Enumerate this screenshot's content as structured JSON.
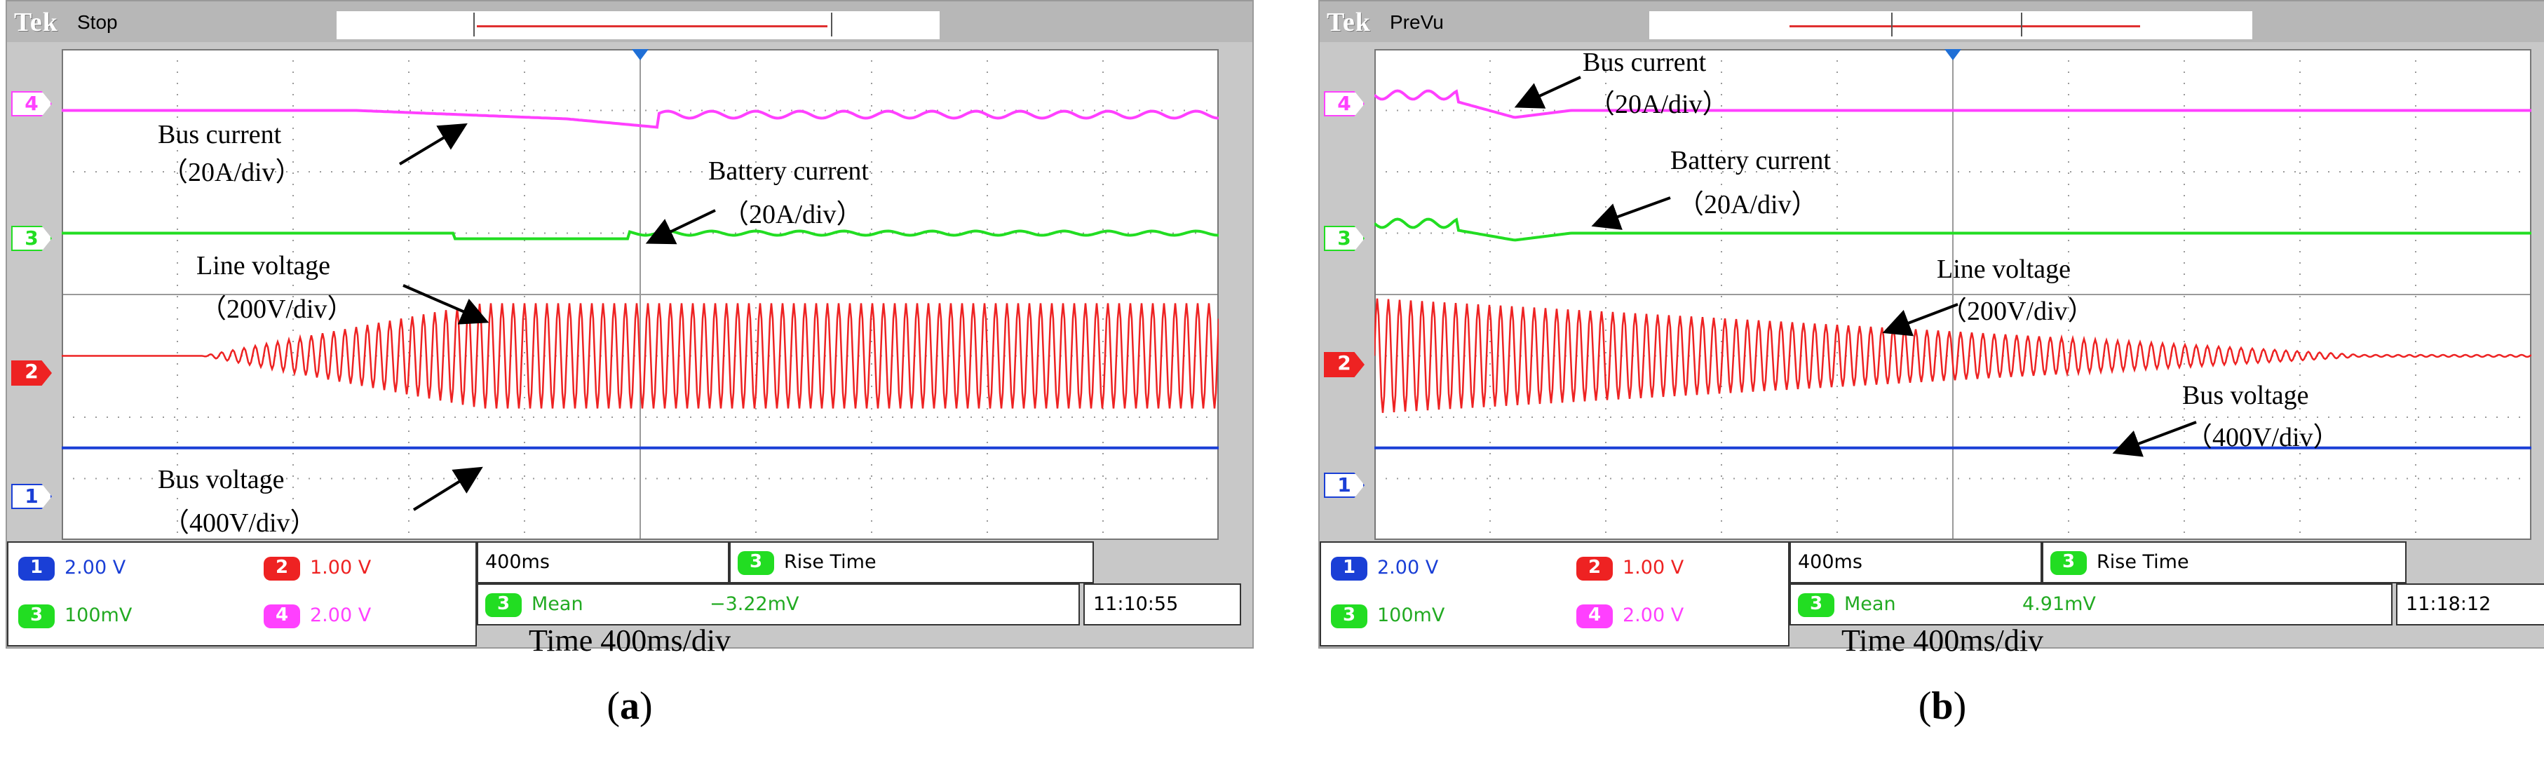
{
  "chart_data": [
    {
      "type": "line",
      "panel_label": "a",
      "scope": {
        "brand": "Tek",
        "status": "Stop"
      },
      "xlabel": "Time 400ms/div",
      "series": [
        {
          "name": "Bus current",
          "channel": "4",
          "annotation": "Bus current",
          "scale": "（20A/div）",
          "color": "#ff40ff",
          "shape": "dip-then-ripple",
          "baseline_div": 3.0
        },
        {
          "name": "Battery current",
          "channel": "3",
          "annotation": "Battery current",
          "scale": "（20A/div）",
          "color": "#22dd22",
          "shape": "dip-then-ripple",
          "baseline_div": 1.0
        },
        {
          "name": "Line voltage",
          "channel": "2",
          "annotation": "Line voltage",
          "scale": "（200V/div）",
          "color": "#ee2222",
          "shape": "growing-oscillation",
          "baseline_div": -1.0
        },
        {
          "name": "Bus voltage",
          "channel": "1",
          "annotation": "Bus voltage",
          "scale": "（400V/div）",
          "color": "#1a3fd6",
          "shape": "flat",
          "baseline_div": -2.5
        }
      ],
      "readout": {
        "ch1": "2.00 V",
        "ch2": "1.00 V",
        "ch3": "100mV",
        "ch4": "2.00 V",
        "timebase": "400ms",
        "measure_label": "Rise Time",
        "mean_label": "Mean",
        "mean_value": "−3.22mV",
        "clock": "11:10:55"
      }
    },
    {
      "type": "line",
      "panel_label": "b",
      "scope": {
        "brand": "Tek",
        "status": "PreVu"
      },
      "xlabel": "Time 400ms/div",
      "series": [
        {
          "name": "Bus current",
          "channel": "4",
          "annotation": "Bus current",
          "scale": "（20A/div）",
          "color": "#ff40ff",
          "shape": "initial-bump-then-flat",
          "baseline_div": 3.0
        },
        {
          "name": "Battery current",
          "channel": "3",
          "annotation": "Battery current",
          "scale": "（20A/div）",
          "color": "#22dd22",
          "shape": "initial-bump-then-flat",
          "baseline_div": 1.0
        },
        {
          "name": "Line voltage",
          "channel": "2",
          "annotation": "Line voltage",
          "scale": "（200V/div）",
          "color": "#ee2222",
          "shape": "decaying-oscillation",
          "baseline_div": -1.0
        },
        {
          "name": "Bus voltage",
          "channel": "1",
          "annotation": "Bus voltage",
          "scale": "（400V/div）",
          "color": "#1a3fd6",
          "shape": "flat",
          "baseline_div": -2.5
        }
      ],
      "readout": {
        "ch1": "2.00 V",
        "ch2": "1.00 V",
        "ch3": "100mV",
        "ch4": "2.00 V",
        "timebase": "400ms",
        "measure_label": "Rise Time",
        "mean_label": "Mean",
        "mean_value": "4.91mV",
        "clock": "11:18:12"
      }
    }
  ]
}
